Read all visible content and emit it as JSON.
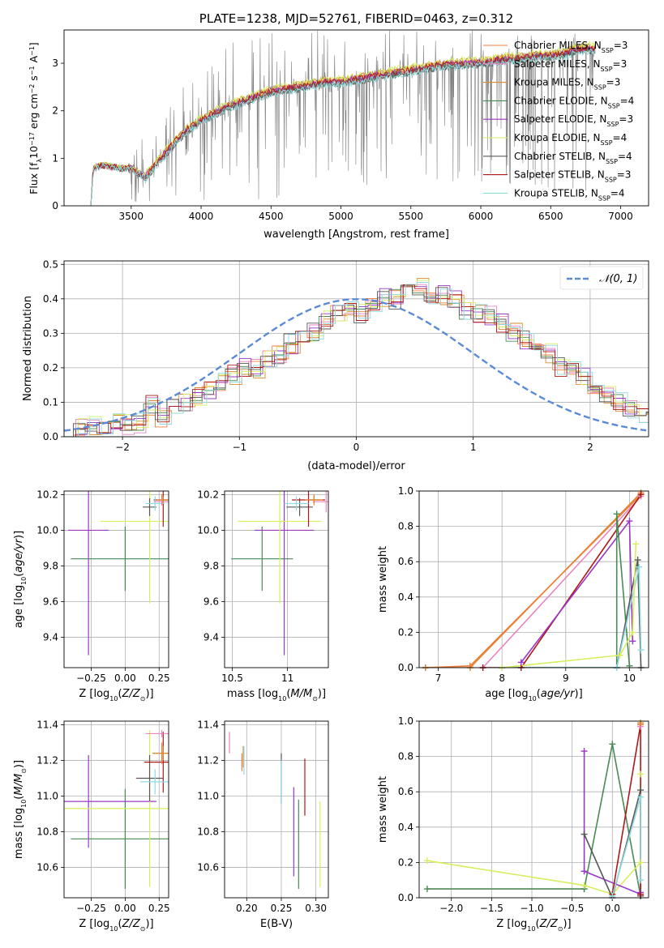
{
  "colors": {
    "chabrier_miles": "#ef7f3b",
    "salpeter_miles": "#ea85c1",
    "kroupa_miles": "#d98a2e",
    "chabrier_elodie": "#4a8a54",
    "salpeter_elodie": "#9838c4",
    "kroupa_elodie": "#d7ee5e",
    "chabrier_stelib": "#585858",
    "salpeter_stelib": "#b01818",
    "kroupa_stelib": "#8edbe0",
    "data_spectrum": "#808080",
    "normal_curve": "#5b8bd6"
  },
  "legend_labels": [
    {
      "base": "Chabrier MILES, N",
      "sub": "SSP",
      "tail": "=3"
    },
    {
      "base": "Salpeter MILES, N",
      "sub": "SSP",
      "tail": "=3"
    },
    {
      "base": "Kroupa MILES, N",
      "sub": "SSP",
      "tail": "=3"
    },
    {
      "base": "Chabrier ELODIE, N",
      "sub": "SSP",
      "tail": "=4"
    },
    {
      "base": "Salpeter ELODIE, N",
      "sub": "SSP",
      "tail": "=3"
    },
    {
      "base": "Kroupa ELODIE, N",
      "sub": "SSP",
      "tail": "=4"
    },
    {
      "base": "Chabrier STELIB, N",
      "sub": "SSP",
      "tail": "=4"
    },
    {
      "base": "Salpeter STELIB, N",
      "sub": "SSP",
      "tail": "=3"
    },
    {
      "base": "Kroupa STELIB, N",
      "sub": "SSP",
      "tail": "=4"
    }
  ],
  "chart_data": [
    {
      "id": "spectrum",
      "type": "line",
      "title": "PLATE=1238, MJD=52761, FIBERID=0463, z=0.312",
      "xlabel": "wavelength [Angstrom, rest frame]",
      "ylabel": "Flux [f_λ 10^-17 erg cm^-2 s^-1 A^-1]",
      "xlim": [
        3020,
        7200
      ],
      "ylim": [
        0,
        3.7
      ],
      "xticks": [
        3500,
        4000,
        4500,
        5000,
        5500,
        6000,
        6500,
        7000
      ],
      "yticks": [
        0,
        1,
        2,
        3
      ],
      "legend_position": "upper right",
      "grid": false,
      "data_noise_envelope": {
        "x": [
          3200,
          3500,
          3800,
          4000,
          4200,
          4500,
          4800,
          5000,
          5500,
          6000,
          6500,
          6800
        ],
        "y_low": [
          0,
          0,
          0,
          0,
          0,
          0,
          0.5,
          0.3,
          0.5,
          0.3,
          0.2,
          0.0
        ],
        "y_high": [
          1.0,
          1.4,
          2.4,
          3.0,
          3.5,
          3.7,
          3.7,
          3.7,
          3.7,
          3.7,
          3.7,
          3.7
        ]
      },
      "model_continuum": {
        "x": [
          3210,
          3230,
          3300,
          3400,
          3500,
          3600,
          3700,
          3800,
          3900,
          4000,
          4100,
          4200,
          4300,
          4400,
          4500,
          4600,
          4700,
          4800,
          4900,
          5000,
          5100,
          5200,
          5300,
          5400,
          5500,
          5600,
          5700,
          5800,
          5900,
          6000,
          6100,
          6200,
          6300,
          6400,
          6500,
          6600,
          6700,
          6800
        ],
        "y": [
          0.0,
          0.8,
          0.85,
          0.8,
          0.78,
          0.6,
          0.95,
          1.3,
          1.6,
          1.8,
          1.95,
          2.1,
          2.2,
          2.3,
          2.4,
          2.45,
          2.5,
          2.55,
          2.6,
          2.6,
          2.65,
          2.7,
          2.75,
          2.8,
          2.85,
          2.9,
          2.95,
          2.97,
          3.0,
          3.0,
          3.05,
          3.1,
          3.1,
          3.15,
          3.15,
          3.2,
          3.3,
          3.3
        ]
      },
      "series": [
        {
          "name": "Chabrier MILES, N_SSP=3",
          "offset": 0.03
        },
        {
          "name": "Salpeter MILES, N_SSP=3",
          "offset": 0.0
        },
        {
          "name": "Kroupa MILES, N_SSP=3",
          "offset": 0.05
        },
        {
          "name": "Chabrier ELODIE, N_SSP=4",
          "offset": -0.02
        },
        {
          "name": "Salpeter ELODIE, N_SSP=3",
          "offset": 0.02
        },
        {
          "name": "Kroupa ELODIE, N_SSP=4",
          "offset": 0.08
        },
        {
          "name": "Chabrier STELIB, N_SSP=4",
          "offset": -0.04
        },
        {
          "name": "Salpeter STELIB, N_SSP=3",
          "offset": 0.01
        },
        {
          "name": "Kroupa STELIB, N_SSP=4",
          "offset": -0.06
        }
      ]
    },
    {
      "id": "residuals",
      "type": "histogram",
      "xlabel": "(data-model)/error",
      "ylabel": "Normed distribution",
      "xlim": [
        -2.5,
        2.5
      ],
      "ylim": [
        0,
        0.51
      ],
      "xticks": [
        -2,
        -1,
        0,
        1,
        2
      ],
      "yticks": [
        0.0,
        0.1,
        0.2,
        0.3,
        0.4,
        0.5
      ],
      "grid": true,
      "legend_position": "upper right",
      "reference_curve": {
        "label": "𝒩(0, 1)",
        "mean": 0,
        "sigma": 1
      },
      "bin_width": 0.1,
      "bin_start": -2.5,
      "base_values": [
        0.03,
        0.03,
        0.035,
        0.03,
        0.04,
        0.035,
        0.04,
        0.09,
        0.055,
        0.08,
        0.1,
        0.12,
        0.13,
        0.16,
        0.18,
        0.2,
        0.2,
        0.22,
        0.24,
        0.27,
        0.28,
        0.3,
        0.34,
        0.36,
        0.37,
        0.36,
        0.38,
        0.4,
        0.4,
        0.42,
        0.44,
        0.41,
        0.41,
        0.4,
        0.37,
        0.36,
        0.35,
        0.33,
        0.3,
        0.28,
        0.26,
        0.24,
        0.2,
        0.19,
        0.17,
        0.14,
        0.12,
        0.1,
        0.08,
        0.06,
        0.05,
        0.04,
        0.035,
        0.03,
        0.03,
        0.035,
        0.03,
        0.04,
        0.03,
        0.035
      ]
    },
    {
      "id": "age_vs_Z",
      "type": "errorbar",
      "xlabel": "Z [log10(Z/Z☉)]",
      "ylabel": "age  [log10(age/yr)]",
      "xlim": [
        -0.45,
        0.32
      ],
      "ylim": [
        9.23,
        10.22
      ],
      "xticks": [
        -0.25,
        0.0,
        0.25
      ],
      "xticklabels": [
        "−0.25",
        "0.00",
        "0.25"
      ],
      "yticks": [
        9.4,
        9.6,
        9.8,
        10.0,
        10.2
      ],
      "grid": true,
      "points": [
        {
          "series": "chabrier_elodie",
          "x": 0.0,
          "xerr": 0.4,
          "y": 9.84,
          "yerr": 0.18
        },
        {
          "series": "salpeter_elodie",
          "x": -0.27,
          "xerr": 0.15,
          "y": 10.0,
          "yerr": 0.7
        },
        {
          "series": "kroupa_elodie",
          "x": 0.18,
          "xerr": 0.36,
          "y": 10.05,
          "yerr": 0.46
        },
        {
          "series": "chabrier_stelib",
          "x": 0.18,
          "xerr": 0.05,
          "y": 10.13,
          "yerr": 0.05
        },
        {
          "series": "salpeter_stelib",
          "x": 0.28,
          "xerr": 0.07,
          "y": 10.17,
          "yerr": 0.15
        },
        {
          "series": "kroupa_stelib",
          "x": 0.22,
          "xerr": 0.07,
          "y": 10.15,
          "yerr": 0.04
        },
        {
          "series": "chabrier_miles",
          "x": 0.27,
          "xerr": 0.04,
          "y": 10.17,
          "yerr": 0.03
        },
        {
          "series": "salpeter_miles",
          "x": 0.27,
          "xerr": 0.06,
          "y": 10.16,
          "yerr": 0.02
        },
        {
          "series": "kroupa_miles",
          "x": 0.28,
          "xerr": 0.04,
          "y": 10.17,
          "yerr": 0.02
        }
      ]
    },
    {
      "id": "age_vs_mass",
      "type": "errorbar",
      "xlabel": "mass [log10(M/M☉)]",
      "ylabel": "",
      "xlim": [
        10.43,
        11.37
      ],
      "ylim": [
        9.23,
        10.22
      ],
      "xticks": [
        10.5,
        11.0
      ],
      "yticks": [
        9.4,
        9.6,
        9.8,
        10.0,
        10.2
      ],
      "grid": true,
      "points": [
        {
          "series": "chabrier_elodie",
          "x": 10.77,
          "xerr": 0.28,
          "y": 9.84,
          "yerr": 0.18
        },
        {
          "series": "salpeter_elodie",
          "x": 10.97,
          "xerr": 0.27,
          "y": 10.0,
          "yerr": 0.7
        },
        {
          "series": "kroupa_elodie",
          "x": 10.93,
          "xerr": 0.38,
          "y": 10.05,
          "yerr": 0.46
        },
        {
          "series": "chabrier_stelib",
          "x": 11.11,
          "xerr": 0.12,
          "y": 10.13,
          "yerr": 0.05
        },
        {
          "series": "salpeter_stelib",
          "x": 11.19,
          "xerr": 0.15,
          "y": 10.17,
          "yerr": 0.15
        },
        {
          "series": "kroupa_stelib",
          "x": 11.08,
          "xerr": 0.11,
          "y": 10.15,
          "yerr": 0.04
        },
        {
          "series": "chabrier_miles",
          "x": 11.24,
          "xerr": 0.08,
          "y": 10.17,
          "yerr": 0.03
        },
        {
          "series": "salpeter_miles",
          "x": 11.35,
          "xerr": 0.12,
          "y": 10.16,
          "yerr": 0.06
        },
        {
          "series": "kroupa_miles",
          "x": 11.24,
          "xerr": 0.05,
          "y": 10.17,
          "yerr": 0.02
        }
      ]
    },
    {
      "id": "mass_weight_vs_age",
      "type": "line",
      "xlabel": "age  [log10(age/yr)]",
      "ylabel": "mass weight",
      "xlim": [
        6.7,
        10.3
      ],
      "ylim": [
        0,
        1.0
      ],
      "xticks": [
        7,
        8,
        9,
        10
      ],
      "yticks": [
        0.0,
        0.2,
        0.4,
        0.6,
        0.8,
        1.0
      ],
      "grid": true,
      "series": [
        {
          "series": "kroupa_miles",
          "x": [
            6.8,
            7.5,
            10.18
          ],
          "y": [
            0.0,
            0.0,
            0.99
          ]
        },
        {
          "series": "chabrier_miles",
          "x": [
            6.8,
            7.5,
            10.18
          ],
          "y": [
            0.0,
            0.01,
            0.98
          ]
        },
        {
          "series": "salpeter_miles",
          "x": [
            7.7,
            10.18
          ],
          "y": [
            0.0,
            0.97
          ]
        },
        {
          "series": "salpeter_stelib",
          "x": [
            7.7,
            8.3,
            10.18
          ],
          "y": [
            0.0,
            0.0,
            0.98
          ]
        },
        {
          "series": "salpeter_elodie",
          "x": [
            8.3,
            10.0,
            10.05
          ],
          "y": [
            0.03,
            0.83,
            0.15
          ]
        },
        {
          "series": "chabrier_elodie",
          "x": [
            8.0,
            9.8,
            9.8,
            10.0
          ],
          "y": [
            0.0,
            0.0,
            0.87,
            0.01
          ]
        },
        {
          "series": "chabrier_stelib",
          "x": [
            8.0,
            9.8,
            10.13,
            10.18
          ],
          "y": [
            0.0,
            0.0,
            0.61,
            0.0
          ]
        },
        {
          "series": "kroupa_stelib",
          "x": [
            8.0,
            9.8,
            10.15,
            10.18
          ],
          "y": [
            0.0,
            0.0,
            0.57,
            0.1
          ]
        },
        {
          "series": "kroupa_elodie",
          "x": [
            8.0,
            9.85,
            10.05,
            10.1
          ],
          "y": [
            0.0,
            0.07,
            0.2,
            0.7
          ]
        }
      ]
    },
    {
      "id": "mass_vs_Z",
      "type": "errorbar",
      "xlabel": "Z [log10(Z/Z☉)]",
      "ylabel": "mass [log10(M/M☉)]",
      "xlim": [
        -0.45,
        0.32
      ],
      "ylim": [
        10.43,
        11.42
      ],
      "xticks": [
        -0.25,
        0.0,
        0.25
      ],
      "xticklabels": [
        "−0.25",
        "0.00",
        "0.25"
      ],
      "yticks": [
        10.6,
        10.8,
        11.0,
        11.2,
        11.4
      ],
      "grid": true,
      "points": [
        {
          "series": "chabrier_elodie",
          "x": 0.0,
          "xerr": 0.4,
          "y": 10.76,
          "yerr": 0.28
        },
        {
          "series": "salpeter_elodie",
          "x": -0.27,
          "xerr": 0.5,
          "y": 10.97,
          "yerr": 0.26
        },
        {
          "series": "kroupa_elodie",
          "x": 0.18,
          "xerr": 0.65,
          "y": 10.93,
          "yerr": 0.44
        },
        {
          "series": "chabrier_stelib",
          "x": 0.18,
          "xerr": 0.1,
          "y": 11.1,
          "yerr": 0.13
        },
        {
          "series": "salpeter_stelib",
          "x": 0.28,
          "xerr": 0.14,
          "y": 11.19,
          "yerr": 0.17
        },
        {
          "series": "kroupa_stelib",
          "x": 0.22,
          "xerr": 0.11,
          "y": 11.08,
          "yerr": 0.07
        },
        {
          "series": "chabrier_miles",
          "x": 0.27,
          "xerr": 0.07,
          "y": 11.24,
          "yerr": 0.06
        },
        {
          "series": "salpeter_miles",
          "x": 0.27,
          "xerr": 0.12,
          "y": 11.35,
          "yerr": 0.02
        },
        {
          "series": "kroupa_miles",
          "x": 0.28,
          "xerr": 0.07,
          "y": 11.24,
          "yerr": 0.04
        }
      ]
    },
    {
      "id": "mass_vs_ebv",
      "type": "errorbar",
      "xlabel": "E(B-V)",
      "ylabel": "",
      "xlim": [
        0.168,
        0.318
      ],
      "ylim": [
        10.43,
        11.42
      ],
      "xticks": [
        0.2,
        0.25,
        0.3
      ],
      "xticklabels": [
        "0.20",
        "0.25",
        "0.30"
      ],
      "yticks": [
        10.6,
        10.8,
        11.0,
        11.2,
        11.4
      ],
      "grid": true,
      "points": [
        {
          "series": "salpeter_miles",
          "x": 0.175,
          "xerr": 0.0,
          "y": 11.3,
          "yerr": 0.06
        },
        {
          "series": "chabrier_miles",
          "x": 0.193,
          "xerr": 0.0,
          "y": 11.19,
          "yerr": 0.05
        },
        {
          "series": "kroupa_miles",
          "x": 0.195,
          "xerr": 0.0,
          "y": 11.22,
          "yerr": 0.06
        },
        {
          "series": "kroupa_stelib",
          "x": 0.196,
          "xerr": 0.0,
          "y": 11.2,
          "yerr": 0.08
        },
        {
          "series": "chabrier_stelib",
          "x": 0.25,
          "xerr": 0.0,
          "y": 11.1,
          "yerr": 0.14
        },
        {
          "series": "kroupa_stelib",
          "x": 0.25,
          "xerr": 0.0,
          "y": 11.08,
          "yerr": 0.12
        },
        {
          "series": "salpeter_elodie",
          "x": 0.268,
          "xerr": 0.0,
          "y": 10.8,
          "yerr": 0.25
        },
        {
          "series": "chabrier_elodie",
          "x": 0.275,
          "xerr": 0.0,
          "y": 10.73,
          "yerr": 0.25
        },
        {
          "series": "salpeter_stelib",
          "x": 0.284,
          "xerr": 0.0,
          "y": 11.05,
          "yerr": 0.16
        },
        {
          "series": "kroupa_elodie",
          "x": 0.306,
          "xerr": 0.0,
          "y": 10.73,
          "yerr": 0.24
        }
      ]
    },
    {
      "id": "mass_weight_vs_Z",
      "type": "line",
      "xlabel": "Z [log10(Z/Z☉)]",
      "ylabel": "mass weight",
      "xlim": [
        -2.4,
        0.45
      ],
      "ylim": [
        0,
        1.0
      ],
      "xticks": [
        -2.0,
        -1.5,
        -1.0,
        -0.5,
        0.0
      ],
      "xticklabels": [
        "−2.0",
        "−1.5",
        "−1.0",
        "−0.5",
        "0.0"
      ],
      "yticks": [
        0.0,
        0.2,
        0.4,
        0.6,
        0.8,
        1.0
      ],
      "grid": true,
      "series": [
        {
          "series": "chabrier_elodie",
          "x": [
            -2.3,
            -0.35,
            -0.35,
            0.0,
            0.35
          ],
          "y": [
            0.05,
            0.05,
            0.05,
            0.87,
            0.01
          ]
        },
        {
          "series": "kroupa_elodie",
          "x": [
            -2.3,
            -0.35,
            0.0,
            0.35,
            0.35
          ],
          "y": [
            0.21,
            0.07,
            0.02,
            0.2,
            0.7
          ]
        },
        {
          "series": "salpeter_elodie",
          "x": [
            -0.35,
            -0.35,
            0.35,
            0.35
          ],
          "y": [
            0.83,
            0.15,
            0.02,
            0.03
          ]
        },
        {
          "series": "chabrier_stelib",
          "x": [
            -0.35,
            0.0,
            0.35,
            0.35
          ],
          "y": [
            0.36,
            0.0,
            0.61,
            0.01
          ]
        },
        {
          "series": "salpeter_stelib",
          "x": [
            0.0,
            0.35,
            0.35
          ],
          "y": [
            0.02,
            0.98,
            0.02
          ]
        },
        {
          "series": "kroupa_stelib",
          "x": [
            0.0,
            0.35,
            0.35
          ],
          "y": [
            0.01,
            0.57,
            0.1
          ]
        },
        {
          "series": "chabrier_miles",
          "x": [
            0.35
          ],
          "y": [
            0.98
          ]
        },
        {
          "series": "salpeter_miles",
          "x": [
            0.35
          ],
          "y": [
            0.97
          ]
        },
        {
          "series": "kroupa_miles",
          "x": [
            0.35
          ],
          "y": [
            0.99
          ]
        }
      ]
    }
  ]
}
